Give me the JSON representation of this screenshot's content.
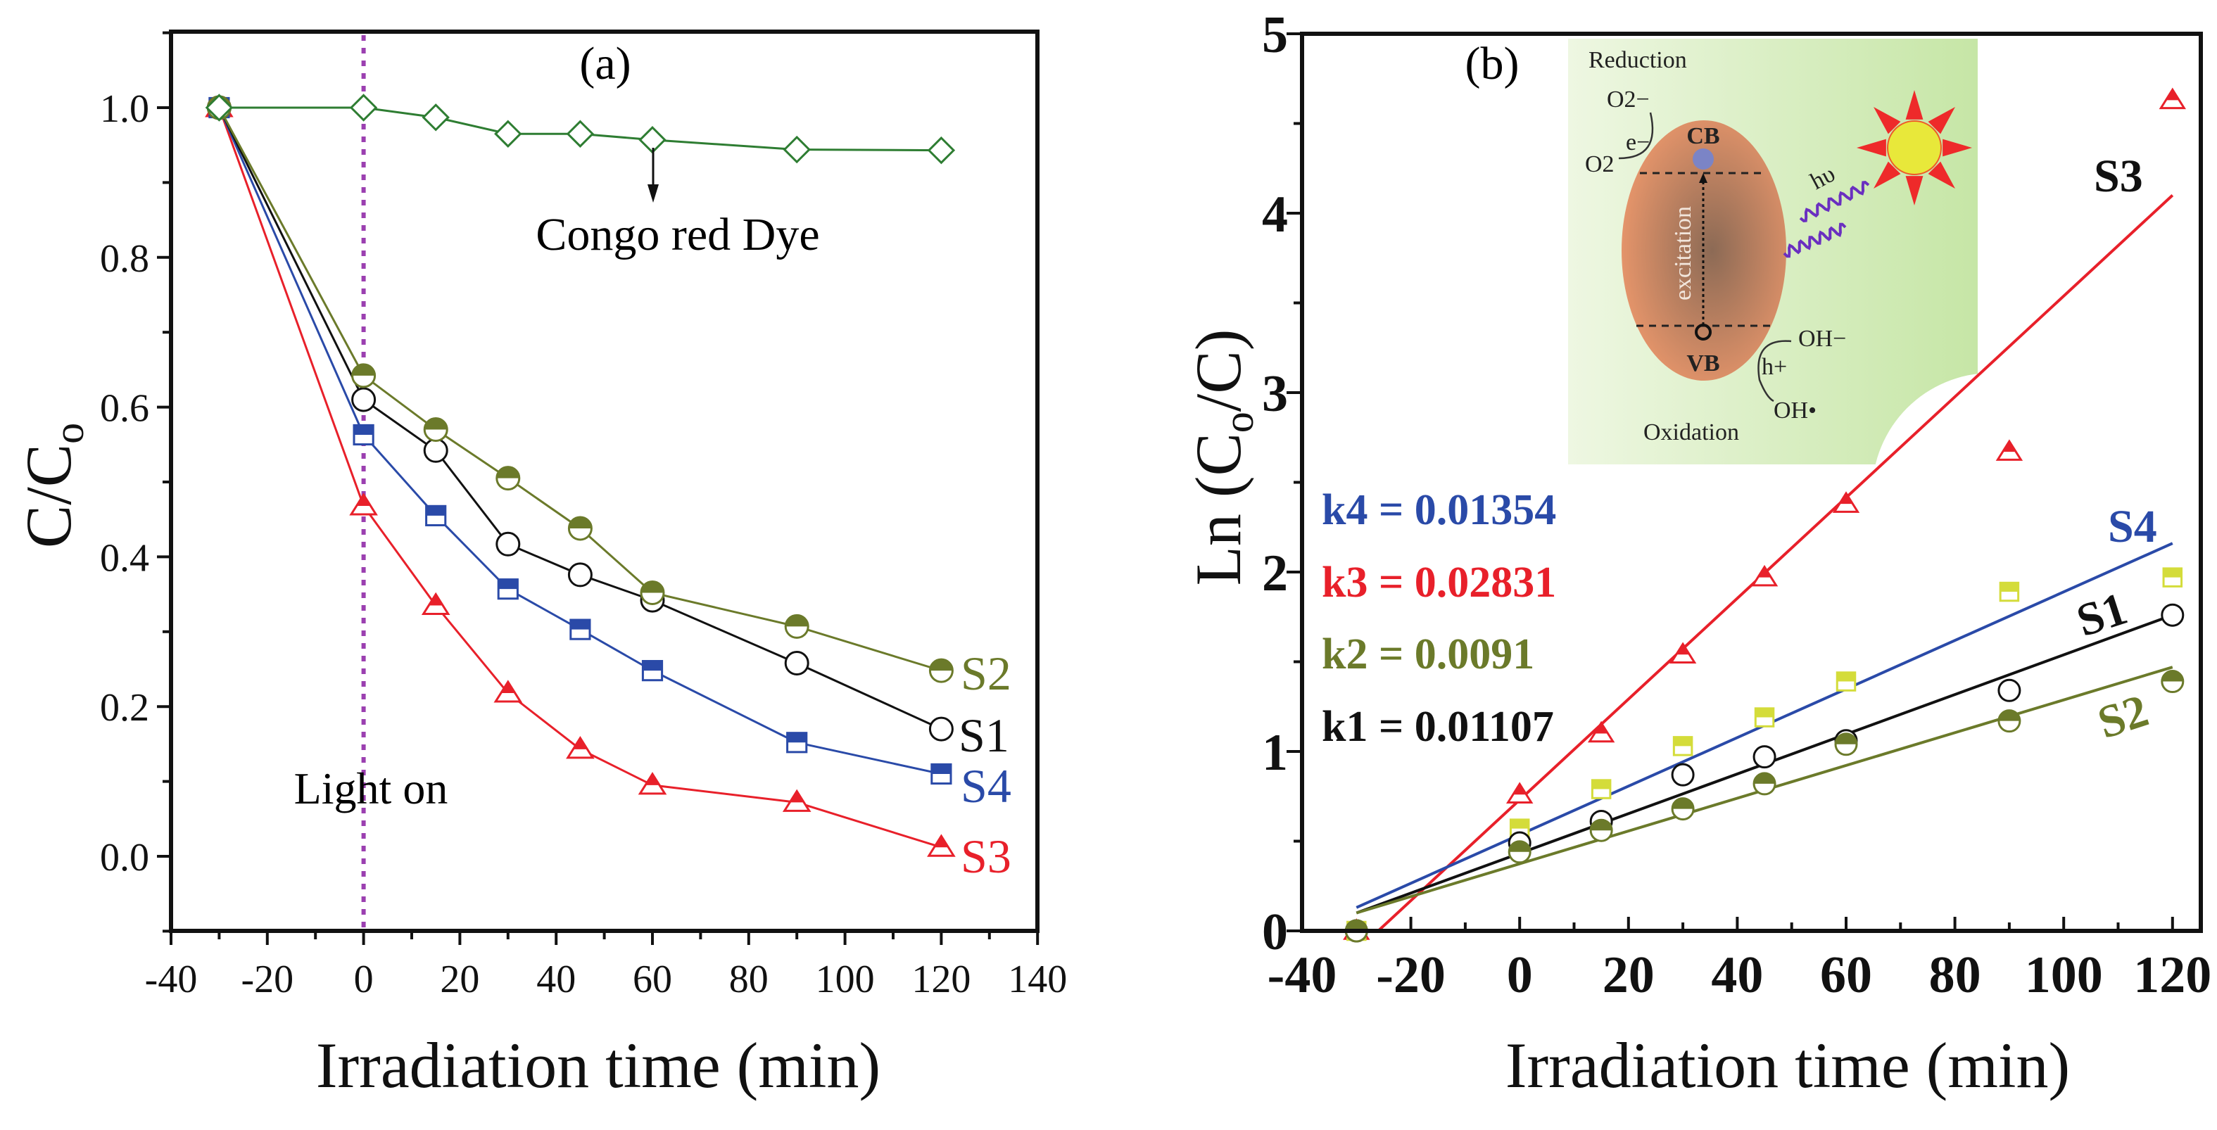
{
  "chart_data": [
    {
      "type": "line",
      "panel": "(a)",
      "xlabel": "Irradiation time (min)",
      "ylabel": {
        "main": "C/C",
        "sub": "o"
      },
      "xlim": [
        -40,
        140
      ],
      "ylim": [
        -0.1,
        1.1
      ],
      "xticks": [
        -40,
        -20,
        0,
        20,
        40,
        60,
        80,
        100,
        120,
        140
      ],
      "yticks": [
        "0.0",
        "0.2",
        "0.4",
        "0.6",
        "0.8",
        "1.0"
      ],
      "x": [
        -30,
        0,
        15,
        30,
        45,
        60,
        90,
        120
      ],
      "series": [
        {
          "name": "Congo red Dye",
          "color": "#2e7d32",
          "marker": "diamond-open",
          "values": [
            1.0,
            1.0,
            0.987,
            0.965,
            0.965,
            0.957,
            0.944,
            0.943
          ]
        },
        {
          "name": "S2",
          "color": "#6b7a2a",
          "marker": "circle-half",
          "values": [
            1.0,
            0.642,
            0.57,
            0.505,
            0.438,
            0.352,
            0.307,
            0.248
          ]
        },
        {
          "name": "S1",
          "color": "#111111",
          "marker": "circle-open",
          "values": [
            1.0,
            0.61,
            0.542,
            0.417,
            0.376,
            0.342,
            0.258,
            0.17
          ]
        },
        {
          "name": "S4",
          "color": "#2a4aa8",
          "marker": "square-half",
          "values": [
            1.0,
            0.563,
            0.455,
            0.357,
            0.303,
            0.248,
            0.152,
            0.11
          ]
        },
        {
          "name": "S3",
          "color": "#e8202a",
          "marker": "triangle-half",
          "values": [
            1.0,
            0.468,
            0.335,
            0.218,
            0.143,
            0.095,
            0.072,
            0.012
          ]
        }
      ],
      "annotations": {
        "panel_label": "(a)",
        "dye_label": "Congo red Dye",
        "light_on": "Light on",
        "light_on_x": 0,
        "light_color": "#9b3fb0"
      }
    },
    {
      "type": "scatter",
      "panel": "(b)",
      "xlabel": "Irradiation time (min)",
      "ylabel": {
        "main": "Ln (C",
        "sub": "o",
        "tail": "/C)"
      },
      "xlim": [
        -40,
        125
      ],
      "ylim": [
        0,
        5
      ],
      "xticks": [
        -40,
        -20,
        0,
        20,
        40,
        60,
        80,
        100,
        120
      ],
      "yticks": [
        0,
        1,
        2,
        3,
        4,
        5
      ],
      "x": [
        -30,
        0,
        15,
        30,
        45,
        60,
        90,
        120
      ],
      "series": [
        {
          "name": "S3",
          "color": "#e8202a",
          "marker": "triangle-half",
          "values": [
            0,
            0.76,
            1.1,
            1.54,
            1.97,
            2.38,
            2.67,
            4.63
          ],
          "fit": {
            "x": [
              -26,
              120
            ],
            "y": [
              0,
              4.1
            ]
          },
          "k_label": "k3 = 0.02831"
        },
        {
          "name": "S4",
          "color": "#2a4aa8",
          "marker_color": "#d4dc3a",
          "marker": "square-half",
          "values": [
            0,
            0.57,
            0.79,
            1.03,
            1.19,
            1.39,
            1.89,
            1.97
          ],
          "fit": {
            "x": [
              -30,
              120
            ],
            "y": [
              0.13,
              2.16
            ]
          },
          "k_label": "k4 = 0.01354"
        },
        {
          "name": "S1",
          "color": "#111111",
          "marker": "circle-open",
          "values": [
            0,
            0.49,
            0.61,
            0.87,
            0.97,
            1.06,
            1.34,
            1.76
          ],
          "fit": {
            "x": [
              -30,
              120
            ],
            "y": [
              0.1,
              1.76
            ]
          },
          "k_label": "k1 = 0.01107"
        },
        {
          "name": "S2",
          "color": "#6b7a2a",
          "marker": "circle-half",
          "values": [
            0,
            0.44,
            0.56,
            0.68,
            0.82,
            1.04,
            1.17,
            1.39
          ],
          "fit": {
            "x": [
              -30,
              120
            ],
            "y": [
              0.1,
              1.47
            ]
          },
          "k_label": "k2 = 0.0091"
        }
      ],
      "annotations": {
        "panel_label": "(b)"
      },
      "inset": {
        "reduction": "Reduction",
        "o2_minus": "O2−",
        "e_minus": "e−",
        "o2": "O2",
        "cb": "CB",
        "vb": "VB",
        "excitation": "excitation",
        "hv": "hυ",
        "oh_minus": "OH−",
        "h_plus": "h+",
        "oh_radical": "OH•",
        "oxidation": "Oxidation"
      }
    }
  ]
}
